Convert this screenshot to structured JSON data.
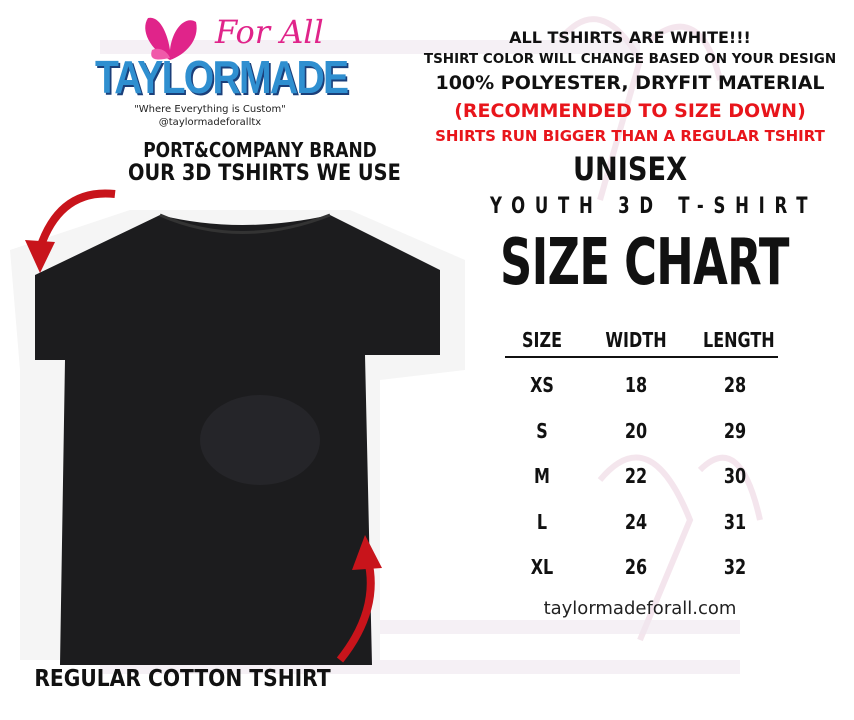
{
  "logo": {
    "brand": "TAYLORMADE",
    "script": "For All",
    "tagline": "\"Where Everything is Custom\"",
    "handle": "@taylormadeforalltx",
    "colors": {
      "brand": "#2f8fd0",
      "script": "#e0248a"
    }
  },
  "watermark": {
    "brand": "TAYLORMADE",
    "line1": "Everything is Custom\"",
    "line2": "madeforalltx"
  },
  "left": {
    "brand_line": "PORT&COMPANY BRAND",
    "use_line": "OUR 3D TSHIRTS WE USE",
    "bottom_label": "REGULAR COTTON TSHIRT",
    "arrow_color": "#c8141b"
  },
  "notes": {
    "line1": "ALL TSHIRTS ARE WHITE!!!",
    "line2": "TSHIRT COLOR WILL CHANGE BASED ON YOUR DESIGN",
    "line3": "100% POLYESTER, DRYFIT MATERIAL",
    "line4": "(RECOMMENDED TO SIZE DOWN)",
    "line5": "SHIRTS RUN BIGGER THAN A REGULAR TSHIRT",
    "accent": "#e8151b"
  },
  "chart": {
    "gender": "UNISEX",
    "subtitle": "YOUTH 3D T-SHIRT",
    "title": "SIZE CHART",
    "headers": [
      "SIZE",
      "WIDTH",
      "LENGTH"
    ],
    "rows": [
      [
        "XS",
        "18",
        "28"
      ],
      [
        "S",
        "20",
        "29"
      ],
      [
        "M",
        "22",
        "30"
      ],
      [
        "L",
        "24",
        "31"
      ],
      [
        "XL",
        "26",
        "32"
      ]
    ],
    "website": "taylormadeforall.com"
  }
}
